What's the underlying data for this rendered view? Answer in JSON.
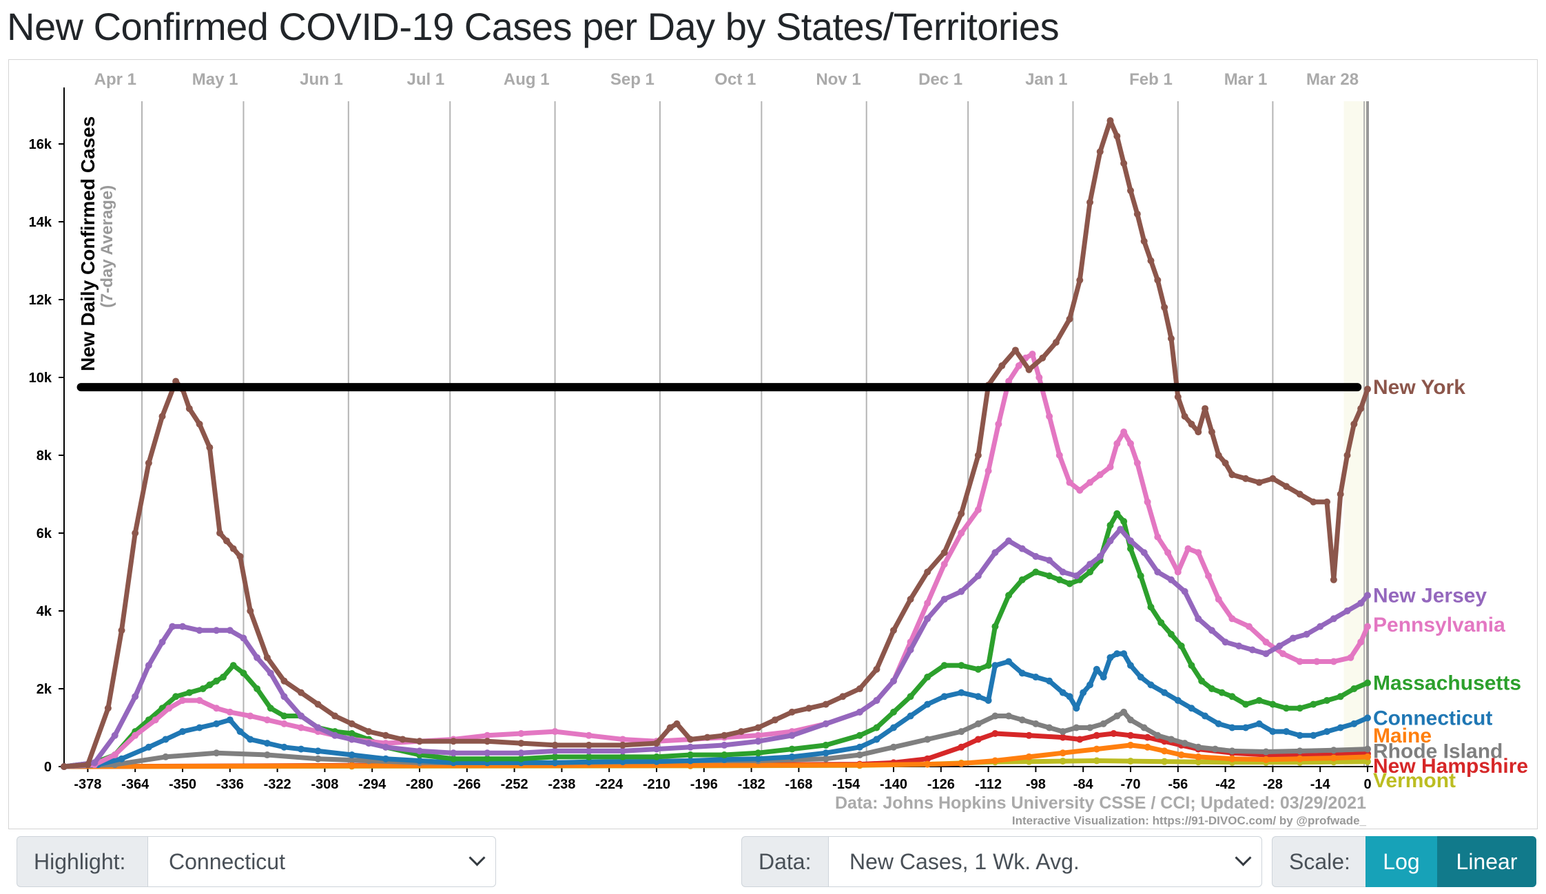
{
  "title": "New Confirmed COVID-19 Cases per Day by States/Territories",
  "controls": {
    "highlight_label": "Highlight:",
    "highlight_value": "Connecticut",
    "data_label": "Data:",
    "data_value": "New Cases, 1 Wk. Avg.",
    "scale_label": "Scale:",
    "scale_log": "Log",
    "scale_linear": "Linear"
  },
  "chart_data": {
    "type": "line",
    "ylabel": "New Daily Confirmed Cases",
    "ylabel_sub": "(7-day Average)",
    "xlim": [
      -385,
      0
    ],
    "ylim": [
      0,
      17400
    ],
    "x_ticks": [
      -378,
      -364,
      -350,
      -336,
      -322,
      -308,
      -294,
      -280,
      -266,
      -252,
      -238,
      -224,
      -210,
      -196,
      -182,
      -168,
      -154,
      -140,
      -126,
      -112,
      -98,
      -84,
      -70,
      -56,
      -42,
      -28,
      -14,
      0
    ],
    "y_ticks": [
      0,
      2000,
      4000,
      6000,
      8000,
      10000,
      12000,
      14000,
      16000
    ],
    "y_tick_labels": [
      "0",
      "2k",
      "4k",
      "6k",
      "8k",
      "10k",
      "12k",
      "14k",
      "16k"
    ],
    "month_lines": [
      {
        "label": "Apr 1",
        "x": -362
      },
      {
        "label": "May 1",
        "x": -332
      },
      {
        "label": "Jun 1",
        "x": -301
      },
      {
        "label": "Jul 1",
        "x": -271
      },
      {
        "label": "Aug 1",
        "x": -240
      },
      {
        "label": "Sep 1",
        "x": -209
      },
      {
        "label": "Oct 1",
        "x": -179
      },
      {
        "label": "Nov 1",
        "x": -148
      },
      {
        "label": "Dec 1",
        "x": -118
      },
      {
        "label": "Jan 1",
        "x": -87
      },
      {
        "label": "Feb 1",
        "x": -56
      },
      {
        "label": "Mar 1",
        "x": -28
      },
      {
        "label": "Mar 28",
        "x": -1
      }
    ],
    "reference_line": {
      "y": 9750,
      "x_start": -380,
      "x_end": -3
    },
    "source_note": "Data: Johns Hopkins University CSSE / CCI; Updated: 03/29/2021",
    "credit_note": "Interactive Visualization: https://91-DIVOC.com/ by @profwade_",
    "series": [
      {
        "name": "New York",
        "color": "#8c564b",
        "x": [
          -385,
          -378,
          -372,
          -368,
          -364,
          -360,
          -356,
          -352,
          -350,
          -348,
          -345,
          -342,
          -339,
          -337,
          -335,
          -333,
          -330,
          -325,
          -320,
          -315,
          -310,
          -305,
          -300,
          -295,
          -290,
          -285,
          -280,
          -270,
          -260,
          -250,
          -240,
          -230,
          -220,
          -210,
          -206,
          -204,
          -200,
          -195,
          -190,
          -185,
          -180,
          -175,
          -170,
          -165,
          -160,
          -155,
          -150,
          -145,
          -140,
          -135,
          -130,
          -125,
          -120,
          -115,
          -112,
          -108,
          -104,
          -100,
          -96,
          -92,
          -88,
          -85,
          -82,
          -79,
          -76,
          -74,
          -72,
          -70,
          -68,
          -66,
          -64,
          -62,
          -60,
          -58,
          -56,
          -54,
          -52,
          -50,
          -48,
          -46,
          -44,
          -42,
          -40,
          -36,
          -32,
          -28,
          -24,
          -20,
          -16,
          -12,
          -10,
          -8,
          -6,
          -4,
          -2,
          0
        ],
        "y": [
          0,
          50,
          1500,
          3500,
          6000,
          7800,
          9000,
          9900,
          9700,
          9200,
          8800,
          8200,
          6000,
          5800,
          5600,
          5400,
          4000,
          2800,
          2200,
          1900,
          1600,
          1300,
          1100,
          900,
          800,
          700,
          650,
          650,
          650,
          600,
          550,
          550,
          550,
          600,
          1000,
          1100,
          700,
          750,
          800,
          900,
          1000,
          1200,
          1400,
          1500,
          1600,
          1800,
          2000,
          2500,
          3500,
          4300,
          5000,
          5500,
          6500,
          8000,
          9800,
          10300,
          10700,
          10200,
          10500,
          10900,
          11500,
          12500,
          14500,
          15800,
          16600,
          16200,
          15500,
          14800,
          14200,
          13500,
          13000,
          12500,
          11800,
          11000,
          9500,
          9000,
          8800,
          8600,
          9200,
          8600,
          8000,
          7800,
          7500,
          7400,
          7300,
          7400,
          7200,
          7000,
          6800,
          6800,
          4800,
          7000,
          8000,
          8800,
          9200,
          9700
        ]
      },
      {
        "name": "New Jersey",
        "color": "#9467bd",
        "x": [
          -385,
          -376,
          -370,
          -364,
          -360,
          -356,
          -353,
          -350,
          -345,
          -340,
          -336,
          -332,
          -328,
          -324,
          -320,
          -315,
          -310,
          -305,
          -300,
          -295,
          -290,
          -280,
          -270,
          -260,
          -250,
          -240,
          -230,
          -220,
          -210,
          -200,
          -190,
          -180,
          -170,
          -160,
          -150,
          -145,
          -140,
          -135,
          -130,
          -125,
          -120,
          -115,
          -110,
          -106,
          -102,
          -98,
          -94,
          -90,
          -86,
          -82,
          -79,
          -76,
          -73,
          -70,
          -66,
          -62,
          -58,
          -54,
          -50,
          -46,
          -42,
          -38,
          -34,
          -30,
          -26,
          -22,
          -18,
          -14,
          -10,
          -6,
          -2,
          0
        ],
        "y": [
          0,
          100,
          800,
          1800,
          2600,
          3200,
          3600,
          3600,
          3500,
          3500,
          3500,
          3300,
          2800,
          2400,
          1800,
          1300,
          1000,
          800,
          700,
          600,
          500,
          400,
          350,
          350,
          350,
          400,
          400,
          400,
          450,
          500,
          550,
          650,
          800,
          1100,
          1400,
          1700,
          2200,
          3000,
          3800,
          4300,
          4500,
          4900,
          5500,
          5800,
          5600,
          5400,
          5300,
          5000,
          4900,
          5200,
          5400,
          5800,
          6100,
          5800,
          5500,
          5000,
          4800,
          4500,
          3800,
          3500,
          3200,
          3100,
          3000,
          2900,
          3100,
          3300,
          3400,
          3600,
          3800,
          4000,
          4200,
          4400
        ]
      },
      {
        "name": "Pennsylvania",
        "color": "#e377c2",
        "x": [
          -385,
          -376,
          -370,
          -364,
          -358,
          -354,
          -350,
          -345,
          -340,
          -336,
          -330,
          -325,
          -320,
          -315,
          -310,
          -300,
          -290,
          -280,
          -270,
          -260,
          -250,
          -240,
          -230,
          -220,
          -210,
          -200,
          -190,
          -180,
          -170,
          -160,
          -150,
          -145,
          -140,
          -135,
          -130,
          -125,
          -120,
          -115,
          -112,
          -109,
          -106,
          -103,
          -101,
          -99,
          -97,
          -94,
          -91,
          -88,
          -85,
          -82,
          -79,
          -76,
          -74,
          -72,
          -70,
          -68,
          -65,
          -62,
          -59,
          -56,
          -53,
          -50,
          -47,
          -44,
          -40,
          -35,
          -30,
          -25,
          -20,
          -15,
          -10,
          -5,
          -2,
          0
        ],
        "y": [
          0,
          50,
          300,
          800,
          1200,
          1500,
          1700,
          1700,
          1500,
          1400,
          1300,
          1200,
          1100,
          1000,
          900,
          700,
          600,
          650,
          700,
          800,
          850,
          900,
          800,
          700,
          650,
          700,
          750,
          800,
          900,
          1100,
          1400,
          1700,
          2200,
          3200,
          4200,
          5200,
          6000,
          6600,
          7600,
          8800,
          9900,
          10300,
          10500,
          10600,
          10000,
          9000,
          8000,
          7300,
          7100,
          7300,
          7500,
          7700,
          8300,
          8600,
          8300,
          7800,
          6800,
          5900,
          5500,
          5000,
          5600,
          5500,
          4900,
          4300,
          3800,
          3600,
          3200,
          2900,
          2700,
          2700,
          2700,
          2800,
          3200,
          3600
        ]
      },
      {
        "name": "Massachusetts",
        "color": "#2ca02c",
        "x": [
          -385,
          -376,
          -370,
          -364,
          -360,
          -356,
          -352,
          -348,
          -344,
          -342,
          -340,
          -338,
          -335,
          -332,
          -328,
          -324,
          -320,
          -315,
          -310,
          -305,
          -300,
          -295,
          -290,
          -280,
          -270,
          -260,
          -250,
          -240,
          -230,
          -220,
          -210,
          -200,
          -190,
          -180,
          -170,
          -160,
          -150,
          -145,
          -140,
          -135,
          -130,
          -125,
          -120,
          -115,
          -112,
          -110,
          -106,
          -102,
          -98,
          -94,
          -91,
          -88,
          -85,
          -82,
          -79,
          -76,
          -74,
          -72,
          -70,
          -67,
          -64,
          -61,
          -58,
          -55,
          -52,
          -49,
          -46,
          -43,
          -40,
          -36,
          -32,
          -28,
          -24,
          -20,
          -16,
          -12,
          -8,
          -4,
          0
        ],
        "y": [
          0,
          100,
          300,
          900,
          1200,
          1500,
          1800,
          1900,
          2000,
          2100,
          2200,
          2300,
          2600,
          2400,
          2000,
          1500,
          1300,
          1300,
          1000,
          900,
          850,
          700,
          500,
          300,
          200,
          200,
          200,
          250,
          250,
          250,
          250,
          300,
          300,
          350,
          450,
          550,
          800,
          1000,
          1400,
          1800,
          2300,
          2600,
          2600,
          2500,
          2600,
          3600,
          4400,
          4800,
          5000,
          4900,
          4800,
          4700,
          4800,
          5000,
          5300,
          6200,
          6500,
          6300,
          5600,
          4900,
          4100,
          3700,
          3400,
          3100,
          2600,
          2200,
          2000,
          1900,
          1800,
          1600,
          1700,
          1600,
          1500,
          1500,
          1600,
          1700,
          1800,
          2000,
          2150
        ]
      },
      {
        "name": "Connecticut",
        "color": "#1f77b4",
        "x": [
          -385,
          -375,
          -368,
          -360,
          -355,
          -350,
          -345,
          -340,
          -336,
          -333,
          -330,
          -325,
          -320,
          -315,
          -310,
          -300,
          -290,
          -280,
          -270,
          -260,
          -250,
          -240,
          -230,
          -220,
          -210,
          -200,
          -190,
          -180,
          -170,
          -160,
          -150,
          -145,
          -140,
          -135,
          -130,
          -125,
          -120,
          -115,
          -112,
          -110,
          -106,
          -102,
          -98,
          -94,
          -90,
          -88,
          -86,
          -84,
          -82,
          -80,
          -78,
          -76,
          -74,
          -72,
          -70,
          -67,
          -64,
          -60,
          -56,
          -52,
          -48,
          -44,
          -40,
          -36,
          -32,
          -28,
          -24,
          -20,
          -16,
          -12,
          -8,
          -4,
          0
        ],
        "y": [
          0,
          50,
          200,
          500,
          700,
          900,
          1000,
          1100,
          1200,
          900,
          700,
          600,
          500,
          450,
          400,
          300,
          200,
          150,
          100,
          100,
          100,
          100,
          120,
          130,
          130,
          150,
          180,
          200,
          250,
          350,
          500,
          700,
          1000,
          1300,
          1600,
          1800,
          1900,
          1800,
          1700,
          2600,
          2700,
          2400,
          2300,
          2200,
          1900,
          1800,
          1500,
          1900,
          2100,
          2500,
          2300,
          2800,
          2900,
          2900,
          2600,
          2300,
          2100,
          1900,
          1700,
          1500,
          1300,
          1100,
          1000,
          1000,
          1100,
          900,
          900,
          800,
          800,
          900,
          1000,
          1100,
          1250
        ]
      },
      {
        "name": "Maine",
        "color": "#ff7f0e",
        "x": [
          -385,
          -300,
          -200,
          -150,
          -130,
          -120,
          -110,
          -100,
          -90,
          -80,
          -70,
          -65,
          -60,
          -55,
          -50,
          -40,
          -30,
          -20,
          -10,
          0
        ],
        "y": [
          0,
          20,
          30,
          40,
          60,
          80,
          150,
          250,
          350,
          450,
          550,
          500,
          400,
          300,
          250,
          200,
          180,
          200,
          220,
          250
        ]
      },
      {
        "name": "Rhode Island",
        "color": "#7f7f7f",
        "x": [
          -385,
          -370,
          -355,
          -340,
          -325,
          -310,
          -295,
          -280,
          -260,
          -240,
          -220,
          -200,
          -180,
          -160,
          -150,
          -140,
          -130,
          -120,
          -115,
          -110,
          -106,
          -102,
          -98,
          -94,
          -90,
          -86,
          -82,
          -78,
          -74,
          -72,
          -70,
          -66,
          -62,
          -58,
          -54,
          -50,
          -45,
          -40,
          -30,
          -20,
          -10,
          0
        ],
        "y": [
          0,
          50,
          250,
          350,
          300,
          200,
          150,
          100,
          100,
          100,
          120,
          150,
          150,
          200,
          300,
          500,
          700,
          900,
          1100,
          1300,
          1300,
          1200,
          1100,
          1000,
          900,
          1000,
          1000,
          1100,
          1300,
          1400,
          1200,
          1000,
          800,
          700,
          600,
          500,
          450,
          400,
          380,
          400,
          420,
          450
        ]
      },
      {
        "name": "New Hampshire",
        "color": "#d62728",
        "x": [
          -385,
          -300,
          -200,
          -150,
          -140,
          -130,
          -120,
          -115,
          -110,
          -100,
          -90,
          -85,
          -80,
          -75,
          -70,
          -65,
          -60,
          -55,
          -50,
          -40,
          -30,
          -20,
          -10,
          0
        ],
        "y": [
          0,
          30,
          40,
          60,
          100,
          200,
          500,
          700,
          850,
          800,
          750,
          700,
          800,
          850,
          800,
          750,
          650,
          550,
          450,
          350,
          300,
          280,
          300,
          330
        ]
      },
      {
        "name": "Vermont",
        "color": "#bcbd22",
        "x": [
          -385,
          -300,
          -200,
          -150,
          -130,
          -120,
          -110,
          -100,
          -90,
          -80,
          -70,
          -60,
          -50,
          -40,
          -30,
          -20,
          -10,
          0
        ],
        "y": [
          0,
          10,
          20,
          30,
          60,
          90,
          120,
          130,
          140,
          150,
          140,
          130,
          120,
          110,
          110,
          110,
          120,
          130
        ]
      }
    ]
  }
}
